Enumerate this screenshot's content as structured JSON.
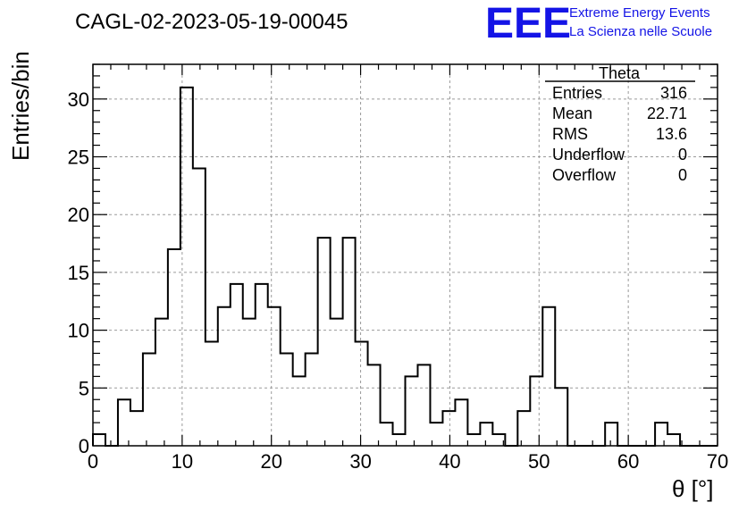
{
  "chart_data": {
    "type": "bar",
    "title": "CAGL-02-2023-05-19-00045",
    "xlabel": "θ [°]",
    "ylabel": "Entries/bin",
    "xlim": [
      0,
      70
    ],
    "ylim": [
      0,
      33
    ],
    "grid": true,
    "bin_width": 1.4,
    "x_ticks": [
      0,
      10,
      20,
      30,
      40,
      50,
      60,
      70
    ],
    "y_ticks": [
      0,
      5,
      10,
      15,
      20,
      25,
      30
    ],
    "bin_edges_start": 0,
    "values": [
      1,
      0,
      4,
      3,
      8,
      11,
      17,
      31,
      24,
      9,
      12,
      14,
      11,
      14,
      12,
      8,
      6,
      8,
      18,
      11,
      18,
      9,
      7,
      2,
      1,
      6,
      7,
      2,
      3,
      4,
      1,
      2,
      1,
      0,
      3,
      6,
      12,
      5,
      0,
      0,
      0,
      2,
      0,
      0,
      0,
      2,
      1,
      0,
      0,
      0
    ],
    "legend": {
      "position": "top-right",
      "name": "Theta",
      "rows": [
        {
          "label": "Entries",
          "value": "316"
        },
        {
          "label": "Mean",
          "value": "22.71"
        },
        {
          "label": "RMS",
          "value": "13.6"
        },
        {
          "label": "Underflow",
          "value": "0"
        },
        {
          "label": "Overflow",
          "value": "0"
        }
      ]
    }
  },
  "logo": {
    "mark": "EEE",
    "line1": "Extreme Energy Events",
    "line2": "La Scienza nelle Scuole",
    "color": "#1414e6"
  }
}
